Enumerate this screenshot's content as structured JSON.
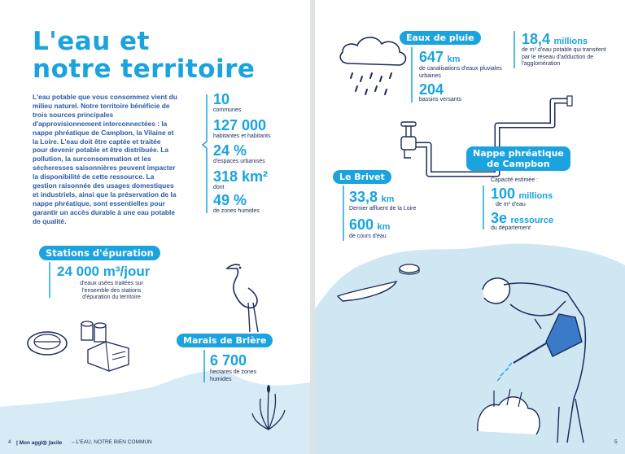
{
  "left": {
    "title_line1": "L'eau et",
    "title_line2": "notre territoire",
    "intro": "L'eau potable que vous consommez vient du milieu naturel. Notre territoire bénéficie de trois sources principales d'approvisionnement interconnectées : la nappe phréatique de Campbon, la Vilaine et la Loire. L'eau doit être captée et traitée pour devenir potable et être distribuée. La pollution, la surconsommation et les sécheresses saisonnières peuvent impacter la disponibilité de cette ressource. La gestion raisonnée des usages domestiques et industriels, ainsi que la préservation de la nappe phréatique, sont essentielles pour garantir un accès durable à une eau potable de qualité.",
    "stats": [
      {
        "value": "10",
        "label": "communes"
      },
      {
        "value": "127 000",
        "label": "habitantes et habitants"
      },
      {
        "value": "24 %",
        "label": "d'espaces urbanisés"
      },
      {
        "value": "318 km²",
        "label": "dont"
      },
      {
        "value": "49 %",
        "label": "de zones humides"
      }
    ],
    "stations": {
      "pill": "Stations d'épuration",
      "value": "24 000 m³/jour",
      "label": "d'eaux usées traitées sur l'ensemble des stations d'épuration du territoire"
    },
    "briere": {
      "pill": "Marais de Brière",
      "value": "6 700",
      "label": "hectares de zones humides"
    },
    "footer_page": "4",
    "footer_brand": "| Mon aggl◎ ʃacile",
    "footer_text": "– L'EAU, NOTRE BIEN COMMUN"
  },
  "right": {
    "pluie": {
      "pill": "Eaux de pluie",
      "value1": "647",
      "unit1": "km",
      "label1": "de canalisations d'eaux pluviales urbaines",
      "value2": "204",
      "label2": "bassins versants"
    },
    "millions": {
      "value": "18,4",
      "unit": "millions",
      "label": "de m³ d'eau potable qui transitent par le réseau d'adduction de l'agglomération"
    },
    "nappe": {
      "pill_line1": "Nappe phréatique",
      "pill_line2": "de Campbon",
      "cap_label": "Capacité estimée :",
      "cap_value": "100",
      "cap_unit": "millions",
      "cap_sub": "de m³ d'eau",
      "rank": "3e",
      "rank_word": "ressource",
      "rank_sub": "du département"
    },
    "brivet": {
      "pill": "Le Brivet",
      "value1": "33,8",
      "unit1": "km",
      "label1": "Dernier affluent de la Loire",
      "value2": "600",
      "unit2": "km",
      "label2": "de cours d'eau"
    },
    "footer_page": "5"
  },
  "colors": {
    "accent": "#1aa3de",
    "dark": "#1d2b5a",
    "water": "#cfe6f3"
  }
}
